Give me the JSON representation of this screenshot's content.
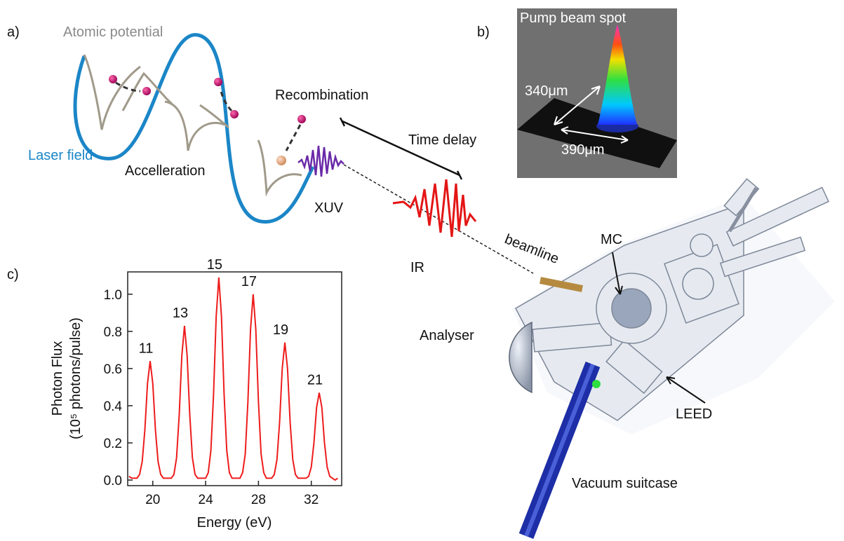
{
  "panel_a": {
    "label": "a)",
    "atomic_potential": "Atomic potential",
    "laser_field": "Laser field",
    "acceleration": "Accelleration",
    "recombination": "Recombination",
    "xuv": "XUV",
    "time_delay": "Time delay",
    "ir": "IR"
  },
  "panel_b": {
    "label": "b)",
    "title": "Pump beam spot",
    "width_y": "340μm",
    "width_x": "390μm"
  },
  "apparatus": {
    "beamline": "beamline",
    "mc": "MC",
    "analyser": "Analyser",
    "leed": "LEED",
    "suitcase": "Vacuum suitcase"
  },
  "chart_data": {
    "type": "line",
    "panel_label": "c)",
    "x_label": "Energy (eV)",
    "y_label": [
      "Photon Flux",
      "(10⁵ photons/pulse)"
    ],
    "peak_labels": [
      "11",
      "13",
      "15",
      "17",
      "19",
      "21"
    ],
    "xlim": [
      18.1,
      34.3
    ],
    "xticks": [
      20,
      24,
      28,
      32
    ],
    "ylim": [
      -0.03,
      1.12
    ],
    "yticks": [
      {
        "value": 0,
        "label": "0.0"
      },
      0.2,
      0.4,
      0.6,
      0.8,
      {
        "value": 1,
        "label": "1.0"
      }
    ],
    "x": [
      18.2,
      18.4,
      18.6,
      18.8,
      19.0,
      19.2,
      19.4,
      19.6,
      19.8,
      20.0,
      20.2,
      20.4,
      20.6,
      20.8,
      21.0,
      21.2,
      21.4,
      21.6,
      21.8,
      22.0,
      22.2,
      22.4,
      22.6,
      22.8,
      23.0,
      23.2,
      23.4,
      23.6,
      23.8,
      24.0,
      24.2,
      24.4,
      24.6,
      24.8,
      25.0,
      25.2,
      25.4,
      25.6,
      25.8,
      26.0,
      26.2,
      26.4,
      26.6,
      26.8,
      27.0,
      27.2,
      27.4,
      27.6,
      27.8,
      28.0,
      28.2,
      28.4,
      28.6,
      28.8,
      29.0,
      29.2,
      29.4,
      29.6,
      29.8,
      30.0,
      30.2,
      30.4,
      30.6,
      30.8,
      31.0,
      31.2,
      31.4,
      31.6,
      31.8,
      32.0,
      32.2,
      32.4,
      32.6,
      32.8,
      33.0,
      33.2,
      33.4,
      33.6,
      33.8,
      34.0
    ],
    "series": [
      {
        "color": "#ee1c1c",
        "values": [
          0.02,
          0.01,
          0.01,
          0.01,
          0.03,
          0.1,
          0.27,
          0.52,
          0.64,
          0.52,
          0.27,
          0.1,
          0.03,
          0.01,
          0.01,
          0.01,
          0.01,
          0.03,
          0.12,
          0.35,
          0.67,
          0.83,
          0.67,
          0.35,
          0.12,
          0.03,
          0.01,
          0.01,
          0.01,
          0.01,
          0.04,
          0.16,
          0.46,
          0.88,
          1.09,
          0.88,
          0.46,
          0.16,
          0.04,
          0.01,
          0.01,
          0.01,
          0.01,
          0.04,
          0.14,
          0.42,
          0.81,
          1.0,
          0.81,
          0.42,
          0.14,
          0.04,
          0.01,
          0.01,
          0.01,
          0.03,
          0.11,
          0.31,
          0.6,
          0.74,
          0.6,
          0.31,
          0.11,
          0.03,
          0.01,
          0.01,
          0.01,
          0.01,
          0.02,
          0.07,
          0.2,
          0.39,
          0.47,
          0.39,
          0.2,
          0.07,
          0.02,
          0.01,
          0.0,
          0.01
        ]
      }
    ]
  }
}
